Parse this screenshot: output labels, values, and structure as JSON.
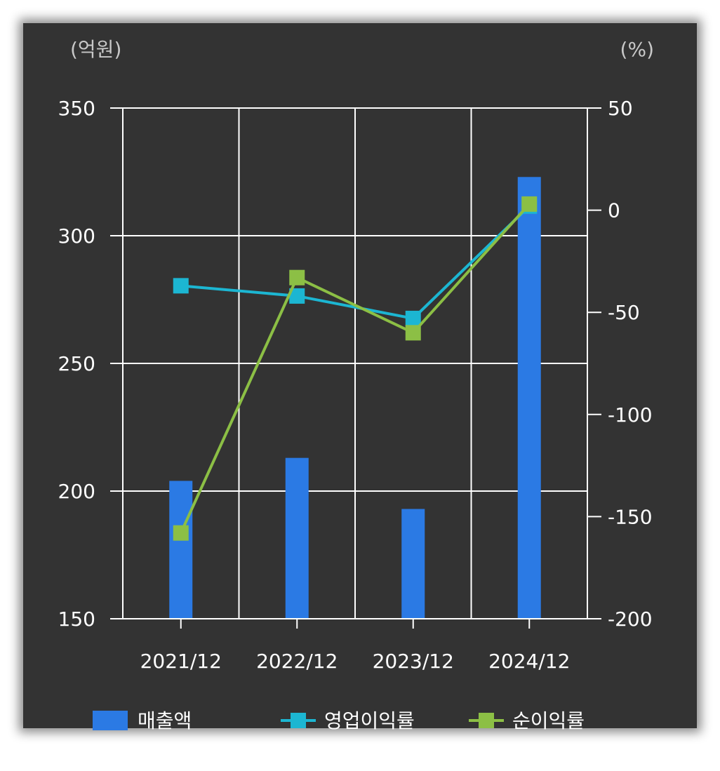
{
  "chart_data": {
    "type": "bar",
    "left_unit": "(억원)",
    "right_unit": "(%)",
    "categories": [
      "2021/12",
      "2022/12",
      "2023/12",
      "2024/12"
    ],
    "left_axis": {
      "ylim": [
        150,
        350
      ],
      "ticks": [
        "150",
        "200",
        "250",
        "300",
        "350"
      ]
    },
    "right_axis": {
      "ylim": [
        -200,
        50
      ],
      "ticks": [
        "-200",
        "-150",
        "-100",
        "-50",
        "0",
        "50"
      ]
    },
    "series": [
      {
        "name": "매출액",
        "type": "bar",
        "axis": "left",
        "color": "#2b7ae4",
        "values": [
          204,
          213,
          193,
          323
        ]
      },
      {
        "name": "영업이익률",
        "type": "line",
        "axis": "right",
        "color": "#1cb6d2",
        "values": [
          -37,
          -42,
          -53,
          2
        ]
      },
      {
        "name": "순이익률",
        "type": "line",
        "axis": "right",
        "color": "#8cbf45",
        "values": [
          -158,
          -33,
          -60,
          3
        ]
      }
    ],
    "grid": true,
    "legend_position": "bottom"
  }
}
